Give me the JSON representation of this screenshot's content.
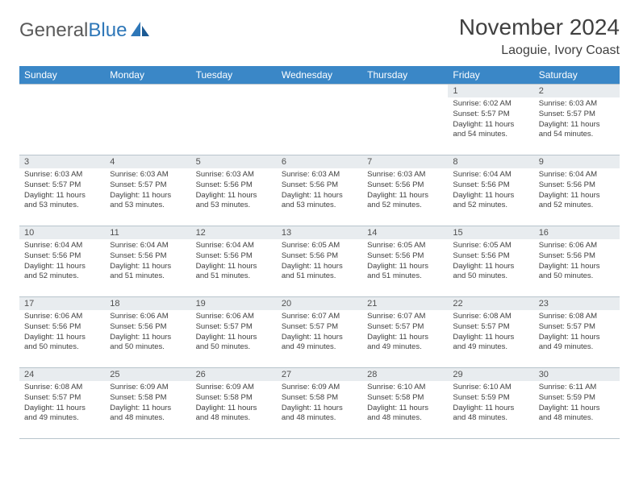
{
  "logo": {
    "word1": "General",
    "word2": "Blue"
  },
  "title": "November 2024",
  "location": "Laoguie, Ivory Coast",
  "colors": {
    "header_bg": "#3a87c7",
    "header_text": "#ffffff",
    "daynum_bg": "#e8ecef",
    "border": "#b8c4cc",
    "logo_gray": "#5a5a5a",
    "logo_blue": "#2e77b8",
    "text": "#404040"
  },
  "weekdays": [
    "Sunday",
    "Monday",
    "Tuesday",
    "Wednesday",
    "Thursday",
    "Friday",
    "Saturday"
  ],
  "weeks": [
    [
      null,
      null,
      null,
      null,
      null,
      {
        "n": "1",
        "sr": "Sunrise: 6:02 AM",
        "ss": "Sunset: 5:57 PM",
        "dl": "Daylight: 11 hours and 54 minutes."
      },
      {
        "n": "2",
        "sr": "Sunrise: 6:03 AM",
        "ss": "Sunset: 5:57 PM",
        "dl": "Daylight: 11 hours and 54 minutes."
      }
    ],
    [
      {
        "n": "3",
        "sr": "Sunrise: 6:03 AM",
        "ss": "Sunset: 5:57 PM",
        "dl": "Daylight: 11 hours and 53 minutes."
      },
      {
        "n": "4",
        "sr": "Sunrise: 6:03 AM",
        "ss": "Sunset: 5:57 PM",
        "dl": "Daylight: 11 hours and 53 minutes."
      },
      {
        "n": "5",
        "sr": "Sunrise: 6:03 AM",
        "ss": "Sunset: 5:56 PM",
        "dl": "Daylight: 11 hours and 53 minutes."
      },
      {
        "n": "6",
        "sr": "Sunrise: 6:03 AM",
        "ss": "Sunset: 5:56 PM",
        "dl": "Daylight: 11 hours and 53 minutes."
      },
      {
        "n": "7",
        "sr": "Sunrise: 6:03 AM",
        "ss": "Sunset: 5:56 PM",
        "dl": "Daylight: 11 hours and 52 minutes."
      },
      {
        "n": "8",
        "sr": "Sunrise: 6:04 AM",
        "ss": "Sunset: 5:56 PM",
        "dl": "Daylight: 11 hours and 52 minutes."
      },
      {
        "n": "9",
        "sr": "Sunrise: 6:04 AM",
        "ss": "Sunset: 5:56 PM",
        "dl": "Daylight: 11 hours and 52 minutes."
      }
    ],
    [
      {
        "n": "10",
        "sr": "Sunrise: 6:04 AM",
        "ss": "Sunset: 5:56 PM",
        "dl": "Daylight: 11 hours and 52 minutes."
      },
      {
        "n": "11",
        "sr": "Sunrise: 6:04 AM",
        "ss": "Sunset: 5:56 PM",
        "dl": "Daylight: 11 hours and 51 minutes."
      },
      {
        "n": "12",
        "sr": "Sunrise: 6:04 AM",
        "ss": "Sunset: 5:56 PM",
        "dl": "Daylight: 11 hours and 51 minutes."
      },
      {
        "n": "13",
        "sr": "Sunrise: 6:05 AM",
        "ss": "Sunset: 5:56 PM",
        "dl": "Daylight: 11 hours and 51 minutes."
      },
      {
        "n": "14",
        "sr": "Sunrise: 6:05 AM",
        "ss": "Sunset: 5:56 PM",
        "dl": "Daylight: 11 hours and 51 minutes."
      },
      {
        "n": "15",
        "sr": "Sunrise: 6:05 AM",
        "ss": "Sunset: 5:56 PM",
        "dl": "Daylight: 11 hours and 50 minutes."
      },
      {
        "n": "16",
        "sr": "Sunrise: 6:06 AM",
        "ss": "Sunset: 5:56 PM",
        "dl": "Daylight: 11 hours and 50 minutes."
      }
    ],
    [
      {
        "n": "17",
        "sr": "Sunrise: 6:06 AM",
        "ss": "Sunset: 5:56 PM",
        "dl": "Daylight: 11 hours and 50 minutes."
      },
      {
        "n": "18",
        "sr": "Sunrise: 6:06 AM",
        "ss": "Sunset: 5:56 PM",
        "dl": "Daylight: 11 hours and 50 minutes."
      },
      {
        "n": "19",
        "sr": "Sunrise: 6:06 AM",
        "ss": "Sunset: 5:57 PM",
        "dl": "Daylight: 11 hours and 50 minutes."
      },
      {
        "n": "20",
        "sr": "Sunrise: 6:07 AM",
        "ss": "Sunset: 5:57 PM",
        "dl": "Daylight: 11 hours and 49 minutes."
      },
      {
        "n": "21",
        "sr": "Sunrise: 6:07 AM",
        "ss": "Sunset: 5:57 PM",
        "dl": "Daylight: 11 hours and 49 minutes."
      },
      {
        "n": "22",
        "sr": "Sunrise: 6:08 AM",
        "ss": "Sunset: 5:57 PM",
        "dl": "Daylight: 11 hours and 49 minutes."
      },
      {
        "n": "23",
        "sr": "Sunrise: 6:08 AM",
        "ss": "Sunset: 5:57 PM",
        "dl": "Daylight: 11 hours and 49 minutes."
      }
    ],
    [
      {
        "n": "24",
        "sr": "Sunrise: 6:08 AM",
        "ss": "Sunset: 5:57 PM",
        "dl": "Daylight: 11 hours and 49 minutes."
      },
      {
        "n": "25",
        "sr": "Sunrise: 6:09 AM",
        "ss": "Sunset: 5:58 PM",
        "dl": "Daylight: 11 hours and 48 minutes."
      },
      {
        "n": "26",
        "sr": "Sunrise: 6:09 AM",
        "ss": "Sunset: 5:58 PM",
        "dl": "Daylight: 11 hours and 48 minutes."
      },
      {
        "n": "27",
        "sr": "Sunrise: 6:09 AM",
        "ss": "Sunset: 5:58 PM",
        "dl": "Daylight: 11 hours and 48 minutes."
      },
      {
        "n": "28",
        "sr": "Sunrise: 6:10 AM",
        "ss": "Sunset: 5:58 PM",
        "dl": "Daylight: 11 hours and 48 minutes."
      },
      {
        "n": "29",
        "sr": "Sunrise: 6:10 AM",
        "ss": "Sunset: 5:59 PM",
        "dl": "Daylight: 11 hours and 48 minutes."
      },
      {
        "n": "30",
        "sr": "Sunrise: 6:11 AM",
        "ss": "Sunset: 5:59 PM",
        "dl": "Daylight: 11 hours and 48 minutes."
      }
    ]
  ]
}
